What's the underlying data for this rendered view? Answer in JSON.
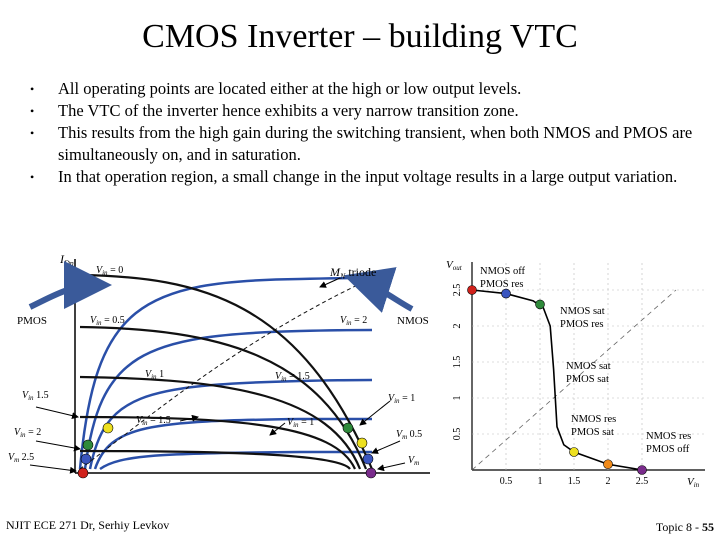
{
  "slide": {
    "title": "CMOS Inverter – building VTC",
    "bullets": [
      "All operating points are located either at the high or low output levels.",
      "The VTC of the inverter hence exhibits a very narrow transition zone.",
      "This results from the high gain during the switching transient, when both NMOS and PMOS are simultaneously on, and in saturation.",
      "In that operation region, a small change in the input voltage results in a large output variation."
    ],
    "footer_left": "NJIT ECE 271  Dr, Serhiy Levkov",
    "footer_topic": "Topic 8 - ",
    "footer_page": "55"
  },
  "load_lines": {
    "y_axis": "I",
    "y_axis_sub": "Dn",
    "pmos_label": "PMOS",
    "nmos_label": "NMOS",
    "mn_label_m": "M",
    "mn_label_sub": "N",
    "mn_label_rest": " triode",
    "curve_labels": [
      {
        "sym": "V",
        "sub": "in",
        "val": " = 0"
      },
      {
        "sym": "V",
        "sub": "in",
        "val": " = 0.5"
      },
      {
        "sym": "V",
        "sub": "in",
        "val": " = 2"
      },
      {
        "sym": "V",
        "sub": "in",
        "val": "  1"
      },
      {
        "sym": "V",
        "sub": "in",
        "val": " = 1.5"
      },
      {
        "sym": "V",
        "sub": "in",
        "val": "   1.5"
      },
      {
        "sym": "V",
        "sub": "in",
        "val": " = 1"
      },
      {
        "sym": "V",
        "sub": "in",
        "val": " = 1.5"
      },
      {
        "sym": "V",
        "sub": "in",
        "val": " = 1"
      },
      {
        "sym": "V",
        "sub": "in",
        "val": " = 2"
      },
      {
        "sym": "V",
        "sub": "m",
        "val": "   0.5"
      },
      {
        "sym": "V",
        "sub": "m",
        "val": "   2.5"
      },
      {
        "sym": "V",
        "sub": "m",
        "val": ""
      }
    ],
    "colors": {
      "pmos_curve": "#2a4fa8",
      "nmos_curve": "#111111",
      "arrow": "#3a5a9a"
    }
  },
  "vtc": {
    "y_axis_sym": "V",
    "y_axis_sub": "out",
    "x_axis_sym": "V",
    "x_axis_sub": "in",
    "x_ticks": [
      "0.5",
      "1",
      "1.5",
      "2",
      "2.5"
    ],
    "y_ticks": [
      "0.5",
      "1",
      "1.5",
      "2",
      "2.5"
    ],
    "regions": [
      {
        "line1": "NMOS off",
        "line2": "PMOS res"
      },
      {
        "line1": "NMOS sat",
        "line2": "PMOS res"
      },
      {
        "line1": "NMOS sat",
        "line2": "PMOS sat"
      },
      {
        "line1": "NMOS res",
        "line2": "PMOS sat"
      },
      {
        "line1": "NMOS res",
        "line2": "PMOS off"
      }
    ],
    "curve_color": "#000000"
  },
  "operating_points": [
    {
      "color": "#d0211b",
      "vin": 0,
      "vout": 2.5
    },
    {
      "color": "#3a55c0",
      "vin": 0.5,
      "vout": 2.45
    },
    {
      "color": "#2f8a3b",
      "vin": 1.0,
      "vout": 2.3
    },
    {
      "color": "#ede020",
      "vin": 1.5,
      "vout": 0.25
    },
    {
      "color": "#f08a1a",
      "vin": 2.0,
      "vout": 0.08
    },
    {
      "color": "#7a2c8c",
      "vin": 2.5,
      "vout": 0.0
    }
  ]
}
